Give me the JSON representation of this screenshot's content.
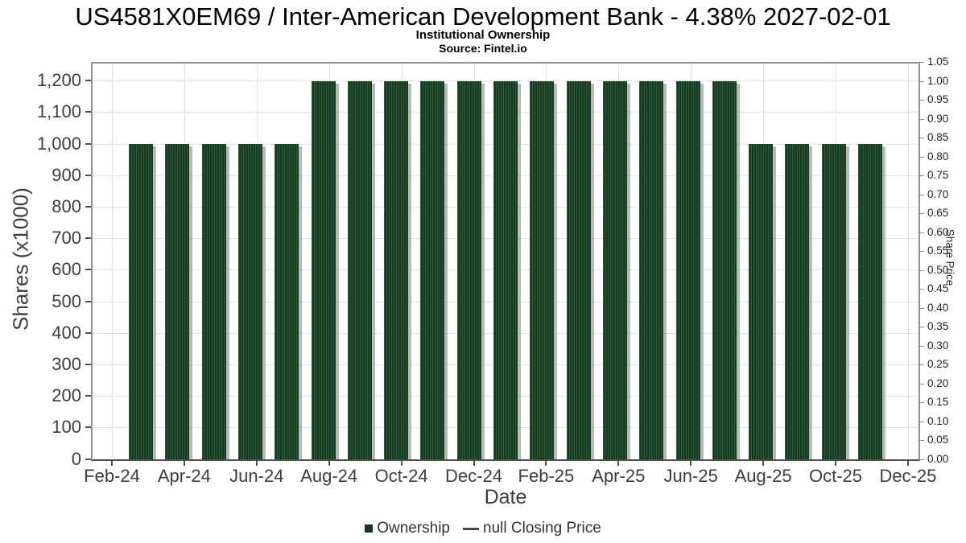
{
  "header": {
    "title": "US4581X0EM69 / Inter-American Development Bank - 4.38% 2027-02-01",
    "subtitle": "Institutional Ownership",
    "source": "Source: Fintel.io"
  },
  "chart_data": {
    "type": "bar",
    "title": "US4581X0EM69 / Inter-American Development Bank - 4.38% 2027-02-01",
    "subtitle": "Institutional Ownership",
    "source": "Source: Fintel.io",
    "xlabel": "Date",
    "ylabel": "Shares (x1000)",
    "ylabel_right": "Share Price",
    "categories": [
      "Mar-24",
      "Apr-24",
      "May-24",
      "Jun-24",
      "Jul-24",
      "Aug-24",
      "Sep-24",
      "Oct-24",
      "Nov-24",
      "Dec-24",
      "Jan-25",
      "Feb-25",
      "Mar-25",
      "Apr-25",
      "May-25",
      "Jun-25",
      "Jul-25",
      "Aug-25",
      "Sep-25",
      "Oct-25",
      "Nov-25"
    ],
    "series": [
      {
        "name": "Ownership",
        "values": [
          1000,
          1000,
          1000,
          1000,
          1000,
          1200,
          1200,
          1200,
          1200,
          1200,
          1200,
          1200,
          1200,
          1200,
          1200,
          1200,
          1200,
          1000,
          1000,
          1000,
          1000
        ]
      },
      {
        "name": "null Closing Price",
        "values": []
      }
    ],
    "x_tick_labels": [
      "Feb-24",
      "Apr-24",
      "Jun-24",
      "Aug-24",
      "Oct-24",
      "Dec-24",
      "Feb-25",
      "Apr-25",
      "Jun-25",
      "Aug-25",
      "Oct-25",
      "Dec-25"
    ],
    "y_ticks_left": [
      {
        "value": 0,
        "label": "0"
      },
      {
        "value": 100,
        "label": "100"
      },
      {
        "value": 200,
        "label": "200"
      },
      {
        "value": 300,
        "label": "300"
      },
      {
        "value": 400,
        "label": "400"
      },
      {
        "value": 500,
        "label": "500"
      },
      {
        "value": 600,
        "label": "600"
      },
      {
        "value": 700,
        "label": "700"
      },
      {
        "value": 800,
        "label": "800"
      },
      {
        "value": 900,
        "label": "900"
      },
      {
        "value": 1000,
        "label": "1,000"
      },
      {
        "value": 1100,
        "label": "1,100"
      },
      {
        "value": 1200,
        "label": "1,200"
      }
    ],
    "y_ticks_right": [
      {
        "value": 0.0,
        "label": "0.00"
      },
      {
        "value": 0.05,
        "label": "0.05"
      },
      {
        "value": 0.1,
        "label": "0.10"
      },
      {
        "value": 0.15,
        "label": "0.15"
      },
      {
        "value": 0.2,
        "label": "0.20"
      },
      {
        "value": 0.25,
        "label": "0.25"
      },
      {
        "value": 0.3,
        "label": "0.30"
      },
      {
        "value": 0.35,
        "label": "0.35"
      },
      {
        "value": 0.4,
        "label": "0.40"
      },
      {
        "value": 0.45,
        "label": "0.45"
      },
      {
        "value": 0.5,
        "label": "0.50"
      },
      {
        "value": 0.55,
        "label": "0.55"
      },
      {
        "value": 0.6,
        "label": "0.60"
      },
      {
        "value": 0.65,
        "label": "0.65"
      },
      {
        "value": 0.7,
        "label": "0.70"
      },
      {
        "value": 0.75,
        "label": "0.75"
      },
      {
        "value": 0.8,
        "label": "0.80"
      },
      {
        "value": 0.85,
        "label": "0.85"
      },
      {
        "value": 0.9,
        "label": "0.90"
      },
      {
        "value": 0.95,
        "label": "0.95"
      },
      {
        "value": 1.0,
        "label": "1.00"
      },
      {
        "value": 1.05,
        "label": "1.05"
      }
    ],
    "ylim_left": [
      0,
      1260
    ],
    "ylim_right": [
      0,
      1.05
    ],
    "grid": true,
    "legend_position": "bottom",
    "legend": [
      {
        "label": "Ownership",
        "marker": "square",
        "color": "#17381f"
      },
      {
        "label": "null Closing Price",
        "marker": "dash",
        "color": "#4a4a4a"
      }
    ],
    "colors": {
      "bar_base": "#163a1f",
      "bar_hatch": "#2f5d3a",
      "bar_shadow": "rgba(130,130,130,0.55)",
      "grid": "#e2e2e2",
      "plot_border": "#909090",
      "axis_line": "#4f4f4f"
    }
  }
}
